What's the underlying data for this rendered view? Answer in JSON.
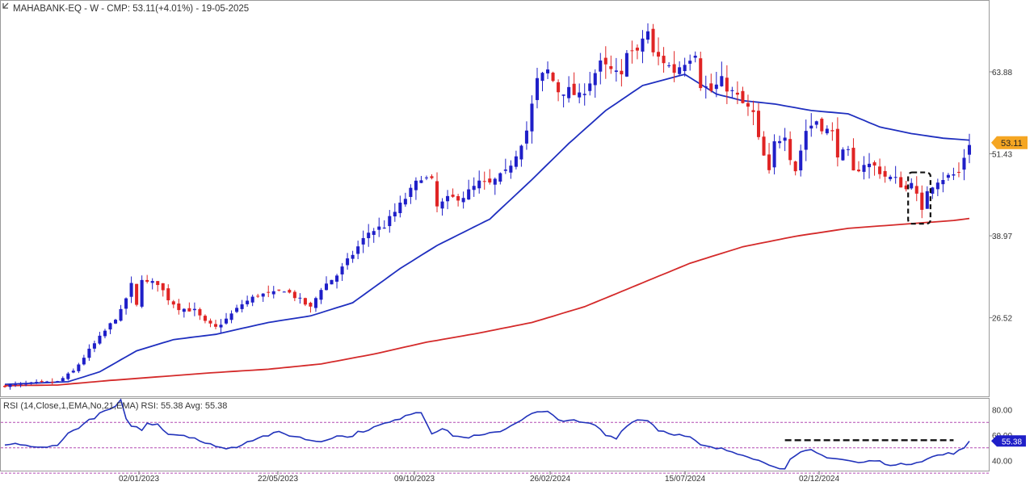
{
  "header": {
    "title": "MAHABANK-EQ - W - CMP: 53.11(+4.01%) - 19-05-2025"
  },
  "rsi_panel": {
    "label": "RSI (14,Close,1,EMA,No,21,EMA) RSI: 55.38 Avg: 55.38",
    "current_value_label": "55.38"
  },
  "price_tag": {
    "label": "53.11",
    "color": "#f5a623"
  },
  "colors": {
    "up_candle": "#1f1fc8",
    "down_candle": "#e02424",
    "ema_fast": "#1f2fbf",
    "ema_slow": "#d42a2a",
    "rsi_line": "#2233bb",
    "rsi_guides": "#b44ab4",
    "annotation": "#111111"
  },
  "chart_data": [
    {
      "type": "candlestick",
      "title": "MAHABANK-EQ - W - CMP: 53.11(+4.01%) - 19-05-2025",
      "y_ticks": [
        63.88,
        51.43,
        38.97,
        26.52
      ],
      "x_ticks": [
        "02/01/2023",
        "22/05/2023",
        "09/10/2023",
        "26/02/2024",
        "15/07/2024",
        "02/12/2024"
      ],
      "ylim": [
        14.7,
        74.3
      ],
      "last_close": 53.11,
      "change_pct": 4.01,
      "date": "19-05-2025",
      "series": [
        {
          "kind": "ohlc",
          "close_path": [
            [
              0,
              16.2
            ],
            [
              6,
              16.6
            ],
            [
              10,
              16.8
            ],
            [
              13,
              18.4
            ],
            [
              16,
              21.6
            ],
            [
              19,
              24.5
            ],
            [
              22,
              27.5
            ],
            [
              24,
              31.5
            ],
            [
              25,
              28.3
            ],
            [
              26,
              32.6
            ],
            [
              27,
              31.8
            ],
            [
              29,
              31.8
            ],
            [
              31,
              29.4
            ],
            [
              33,
              28.0
            ],
            [
              36,
              27.6
            ],
            [
              38,
              25.8
            ],
            [
              40,
              25.0
            ],
            [
              42,
              26.3
            ],
            [
              45,
              28.6
            ],
            [
              48,
              30.0
            ],
            [
              51,
              30.2
            ],
            [
              53,
              30.8
            ],
            [
              56,
              29.2
            ],
            [
              58,
              28.0
            ],
            [
              60,
              31.0
            ],
            [
              63,
              33.0
            ],
            [
              66,
              36.2
            ],
            [
              69,
              39.5
            ],
            [
              72,
              40.5
            ],
            [
              75,
              43.6
            ],
            [
              77,
              45.8
            ],
            [
              79,
              48.0
            ],
            [
              81,
              47.2
            ],
            [
              82,
              43.3
            ],
            [
              84,
              44.5
            ],
            [
              87,
              45.0
            ],
            [
              90,
              47.0
            ],
            [
              92,
              46.8
            ],
            [
              95,
              48.5
            ],
            [
              97,
              51.5
            ],
            [
              99,
              55.0
            ],
            [
              101,
              62.5
            ],
            [
              103,
              64.0
            ],
            [
              105,
              61.0
            ],
            [
              107,
              61.0
            ],
            [
              109,
              60.0
            ],
            [
              111,
              62.5
            ],
            [
              113,
              65.0
            ],
            [
              115,
              64.0
            ],
            [
              117,
              63.0
            ],
            [
              118,
              67.5
            ],
            [
              120,
              66.5
            ],
            [
              121,
              69.0
            ],
            [
              122,
              70.0
            ],
            [
              123,
              66.5
            ],
            [
              125,
              65.5
            ],
            [
              127,
              64.0
            ],
            [
              129,
              65.5
            ],
            [
              131,
              67.0
            ],
            [
              132,
              62.0
            ],
            [
              134,
              61.0
            ],
            [
              136,
              62.5
            ],
            [
              137,
              61.5
            ],
            [
              139,
              60.0
            ],
            [
              140,
              59.0
            ],
            [
              142,
              57.5
            ],
            [
              143,
              53.5
            ],
            [
              145,
              48.5
            ],
            [
              146,
              53.0
            ],
            [
              148,
              54.5
            ],
            [
              149,
              51.0
            ],
            [
              150,
              49.0
            ],
            [
              152,
              55.0
            ],
            [
              154,
              56.5
            ],
            [
              155,
              55.5
            ],
            [
              157,
              54.5
            ],
            [
              158,
              51.5
            ],
            [
              160,
              51.5
            ],
            [
              161,
              48.5
            ],
            [
              163,
              50.0
            ],
            [
              165,
              49.5
            ],
            [
              167,
              48.0
            ],
            [
              169,
              47.5
            ],
            [
              171,
              46.0
            ],
            [
              172,
              47.5
            ],
            [
              173,
              45.0
            ],
            [
              174,
              42.5
            ],
            [
              175,
              46.0
            ],
            [
              177,
              47.5
            ],
            [
              179,
              48.0
            ],
            [
              181,
              48.5
            ],
            [
              182,
              51.0
            ],
            [
              183,
              53.11
            ]
          ],
          "note": "Weekly OHLC candles (about 184 bars); shape approximated from the screenshot"
        },
        {
          "kind": "ema",
          "style": "fast",
          "values": [
            [
              0,
              16.4
            ],
            [
              12,
              16.8
            ],
            [
              18,
              18.3
            ],
            [
              25,
              21.5
            ],
            [
              32,
              23.2
            ],
            [
              40,
              24.0
            ],
            [
              50,
              25.8
            ],
            [
              58,
              26.8
            ],
            [
              66,
              28.8
            ],
            [
              75,
              34.0
            ],
            [
              82,
              37.5
            ],
            [
              92,
              41.5
            ],
            [
              100,
              47.5
            ],
            [
              107,
              53.0
            ],
            [
              114,
              58.0
            ],
            [
              121,
              61.8
            ],
            [
              129,
              63.5
            ],
            [
              135,
              60.5
            ],
            [
              140,
              59.5
            ],
            [
              146,
              59.0
            ],
            [
              153,
              58.0
            ],
            [
              160,
              57.5
            ],
            [
              166,
              55.5
            ],
            [
              172,
              54.5
            ],
            [
              178,
              53.8
            ],
            [
              183,
              53.5
            ]
          ]
        },
        {
          "kind": "ema",
          "style": "slow",
          "values": [
            [
              0,
              16.2
            ],
            [
              10,
              16.3
            ],
            [
              20,
              17.0
            ],
            [
              30,
              17.6
            ],
            [
              40,
              18.2
            ],
            [
              50,
              18.7
            ],
            [
              60,
              19.5
            ],
            [
              70,
              21.0
            ],
            [
              80,
              22.8
            ],
            [
              90,
              24.2
            ],
            [
              100,
              25.8
            ],
            [
              110,
              28.2
            ],
            [
              120,
              31.5
            ],
            [
              130,
              34.8
            ],
            [
              140,
              37.3
            ],
            [
              150,
              38.9
            ],
            [
              160,
              40.1
            ],
            [
              170,
              40.7
            ],
            [
              180,
              41.3
            ],
            [
              183,
              41.6
            ]
          ]
        }
      ],
      "annotations": [
        {
          "kind": "dashed-box",
          "bar_from": 172,
          "bar_to": 175,
          "y_low": 40.8,
          "y_high": 48.6
        }
      ]
    },
    {
      "type": "line",
      "title": "RSI (14,Close,1,EMA,No,21,EMA) RSI: 55.38 Avg: 55.38",
      "y_ticks": [
        80.0,
        60.0,
        40.0
      ],
      "ylim": [
        32,
        88
      ],
      "guides": [
        70,
        50,
        30
      ],
      "current": 55.38,
      "avg": 55.38,
      "series": [
        {
          "values": [
            [
              0,
              52
            ],
            [
              3,
              53
            ],
            [
              6,
              50
            ],
            [
              8,
              50
            ],
            [
              10,
              53
            ],
            [
              12,
              61
            ],
            [
              15,
              69
            ],
            [
              17,
              74
            ],
            [
              19,
              79
            ],
            [
              21,
              82
            ],
            [
              22,
              87
            ],
            [
              23,
              72
            ],
            [
              24,
              68
            ],
            [
              26,
              64
            ],
            [
              27,
              69
            ],
            [
              29,
              69
            ],
            [
              31,
              61
            ],
            [
              34,
              60
            ],
            [
              36,
              58
            ],
            [
              38,
              53
            ],
            [
              40,
              52
            ],
            [
              42,
              49
            ],
            [
              44,
              51
            ],
            [
              46,
              55
            ],
            [
              48,
              58
            ],
            [
              50,
              60
            ],
            [
              52,
              62
            ],
            [
              54,
              60
            ],
            [
              56,
              58
            ],
            [
              58,
              56
            ],
            [
              60,
              55
            ],
            [
              63,
              60
            ],
            [
              65,
              58
            ],
            [
              67,
              62
            ],
            [
              70,
              66
            ],
            [
              72,
              69
            ],
            [
              74,
              71
            ],
            [
              76,
              76
            ],
            [
              78,
              78
            ],
            [
              79,
              78
            ],
            [
              81,
              62
            ],
            [
              83,
              65
            ],
            [
              85,
              60
            ],
            [
              87,
              58
            ],
            [
              89,
              59
            ],
            [
              91,
              60
            ],
            [
              93,
              62
            ],
            [
              95,
              65
            ],
            [
              97,
              70
            ],
            [
              99,
              75
            ],
            [
              101,
              78
            ],
            [
              103,
              78
            ],
            [
              105,
              72
            ],
            [
              107,
              72
            ],
            [
              109,
              70
            ],
            [
              112,
              68
            ],
            [
              114,
              60
            ],
            [
              116,
              58
            ],
            [
              118,
              68
            ],
            [
              120,
              72
            ],
            [
              122,
              72
            ],
            [
              124,
              64
            ],
            [
              126,
              62
            ],
            [
              128,
              60
            ],
            [
              130,
              58
            ],
            [
              132,
              52
            ],
            [
              134,
              50
            ],
            [
              136,
              49
            ],
            [
              138,
              47
            ],
            [
              140,
              45
            ],
            [
              142,
              42
            ],
            [
              144,
              38
            ],
            [
              146,
              36
            ],
            [
              148,
              33
            ],
            [
              149,
              40
            ],
            [
              151,
              46
            ],
            [
              153,
              48
            ],
            [
              155,
              44
            ],
            [
              157,
              42
            ],
            [
              160,
              40
            ],
            [
              162,
              38
            ],
            [
              165,
              40
            ],
            [
              167,
              38
            ],
            [
              169,
              36
            ],
            [
              172,
              38
            ],
            [
              174,
              40
            ],
            [
              177,
              44
            ],
            [
              180,
              46
            ],
            [
              182,
              49
            ],
            [
              183,
              55.38
            ]
          ]
        }
      ],
      "annotations": [
        {
          "kind": "dashed-line",
          "bar_from": 148,
          "bar_to": 180,
          "value": 56
        }
      ]
    }
  ]
}
